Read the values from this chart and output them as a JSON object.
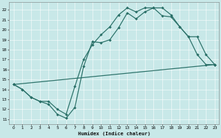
{
  "xlabel": "Humidex (Indice chaleur)",
  "bg_color": "#c8e8e8",
  "grid_color": "#ffffff",
  "line_color": "#2a7068",
  "xlim": [
    -0.5,
    23.5
  ],
  "ylim": [
    10.5,
    22.8
  ],
  "xticks": [
    0,
    1,
    2,
    3,
    4,
    5,
    6,
    7,
    8,
    9,
    10,
    11,
    12,
    13,
    14,
    15,
    16,
    17,
    18,
    19,
    20,
    21,
    22,
    23
  ],
  "yticks": [
    11,
    12,
    13,
    14,
    15,
    16,
    17,
    18,
    19,
    20,
    21,
    22
  ],
  "curve1_x": [
    0,
    1,
    2,
    3,
    4,
    5,
    6,
    7,
    8,
    9,
    10,
    11,
    12,
    13,
    14,
    15,
    16,
    17,
    18,
    19,
    20,
    21,
    22,
    23
  ],
  "curve1_y": [
    14.5,
    14.0,
    13.2,
    12.8,
    12.5,
    11.5,
    11.1,
    12.2,
    16.3,
    18.8,
    18.7,
    19.0,
    20.2,
    21.7,
    21.1,
    21.8,
    22.2,
    22.2,
    21.5,
    20.3,
    19.3,
    17.5,
    16.5,
    16.5
  ],
  "curve2_x": [
    0,
    1,
    2,
    3,
    4,
    5,
    6,
    7,
    8,
    9,
    10,
    11,
    12,
    13,
    14,
    15,
    16,
    17,
    18,
    19,
    20,
    21,
    22,
    23
  ],
  "curve2_y": [
    14.5,
    14.0,
    13.2,
    12.8,
    12.8,
    12.0,
    11.5,
    14.3,
    17.0,
    18.5,
    19.5,
    20.3,
    21.5,
    22.2,
    21.8,
    22.2,
    22.2,
    21.4,
    21.3,
    20.3,
    19.3,
    19.3,
    17.5,
    16.5
  ],
  "curve3_x": [
    0,
    23
  ],
  "curve3_y": [
    14.5,
    16.5
  ]
}
